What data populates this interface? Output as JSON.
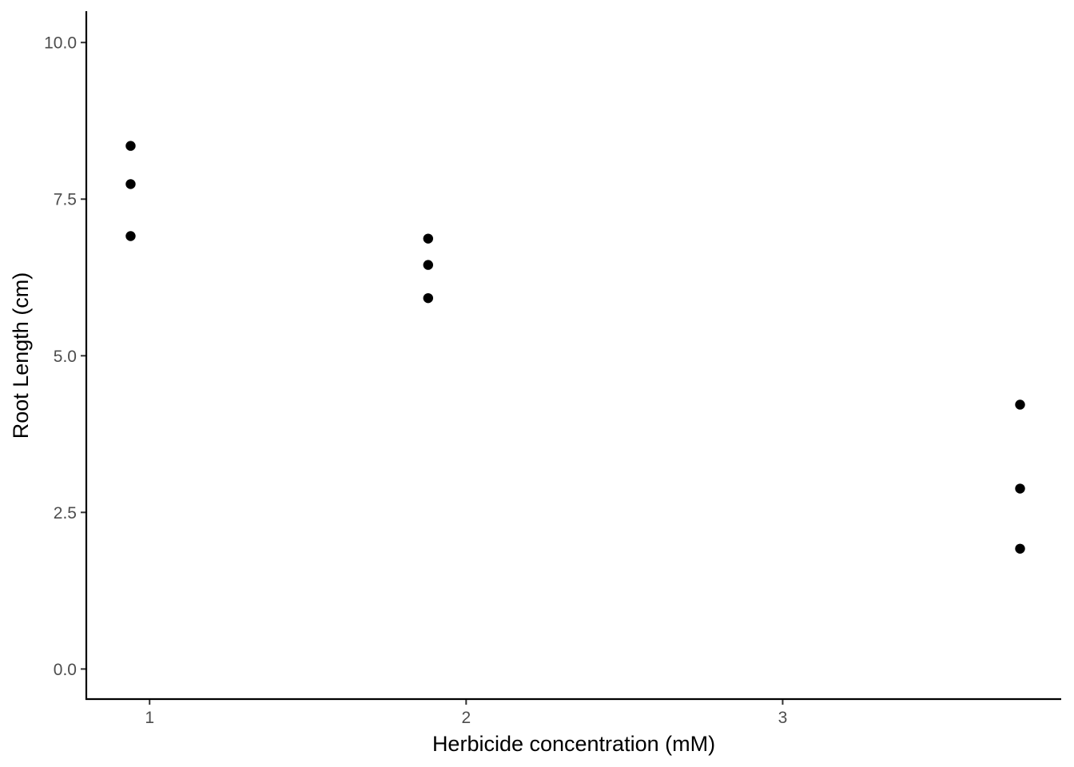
{
  "chart_data": {
    "type": "scatter",
    "xlabel": "Herbicide concentration (mM)",
    "ylabel": "Root Length (cm)",
    "xlim": [
      0.8,
      3.88
    ],
    "ylim": [
      -0.48,
      10.5
    ],
    "x_ticks": [
      1,
      2,
      3
    ],
    "x_tick_labels": [
      "1",
      "2",
      "3"
    ],
    "y_ticks": [
      0,
      2.5,
      5,
      7.5,
      10
    ],
    "y_tick_labels": [
      "0.0",
      "2.5",
      "5.0",
      "7.5",
      "10.0"
    ],
    "grid": false,
    "legend": "none",
    "points": [
      {
        "x": 0.94,
        "y": 8.35
      },
      {
        "x": 0.94,
        "y": 7.74
      },
      {
        "x": 0.94,
        "y": 6.91
      },
      {
        "x": 1.88,
        "y": 6.87
      },
      {
        "x": 1.88,
        "y": 6.45
      },
      {
        "x": 1.88,
        "y": 5.92
      },
      {
        "x": 3.75,
        "y": 4.22
      },
      {
        "x": 3.75,
        "y": 2.88
      },
      {
        "x": 3.75,
        "y": 1.92
      }
    ],
    "colors": {
      "points": "#000000",
      "axis": "#000000"
    }
  }
}
